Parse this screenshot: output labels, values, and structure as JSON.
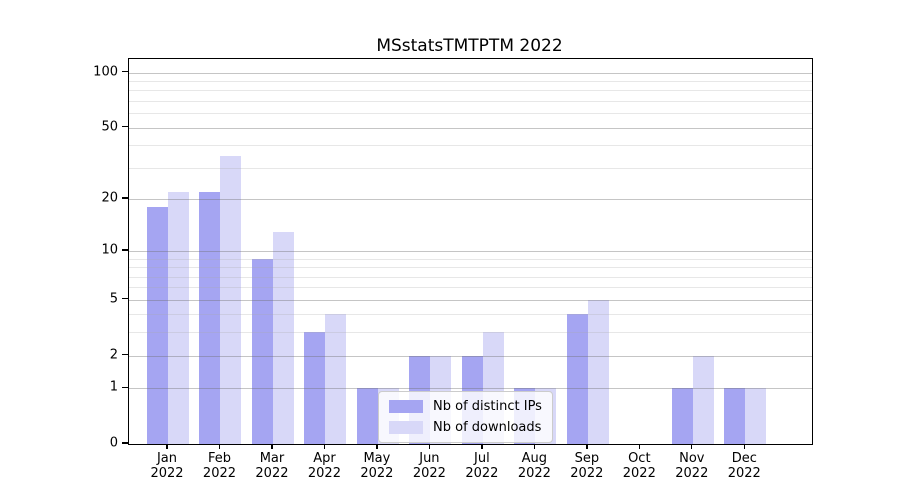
{
  "title": "MSstatsTMTPTM 2022",
  "chart_data": {
    "type": "bar",
    "categories": [
      "Jan",
      "Feb",
      "Mar",
      "Apr",
      "May",
      "Jun",
      "Jul",
      "Aug",
      "Sep",
      "Oct",
      "Nov",
      "Dec"
    ],
    "year_label": "2022",
    "series": [
      {
        "name": "Nb of distinct IPs",
        "color": "#a5a5f2",
        "values": [
          18,
          22,
          9,
          3,
          1,
          2,
          2,
          1,
          4,
          0,
          1,
          1
        ]
      },
      {
        "name": "Nb of downloads",
        "color": "#d8d8f8",
        "values": [
          22,
          35,
          13,
          4,
          1,
          2,
          3,
          1,
          5,
          0,
          2,
          1
        ]
      }
    ],
    "y_axis": {
      "scale": "log1p",
      "major_ticks": [
        0,
        1,
        2,
        5,
        10,
        20,
        50,
        100
      ],
      "minor_ticks": [
        3,
        4,
        6,
        7,
        8,
        9,
        30,
        40,
        60,
        70,
        80,
        90
      ],
      "ylim": [
        0,
        118.5
      ]
    },
    "xlabel": "",
    "ylabel": "",
    "grid": true,
    "legend_position": "lower center"
  }
}
